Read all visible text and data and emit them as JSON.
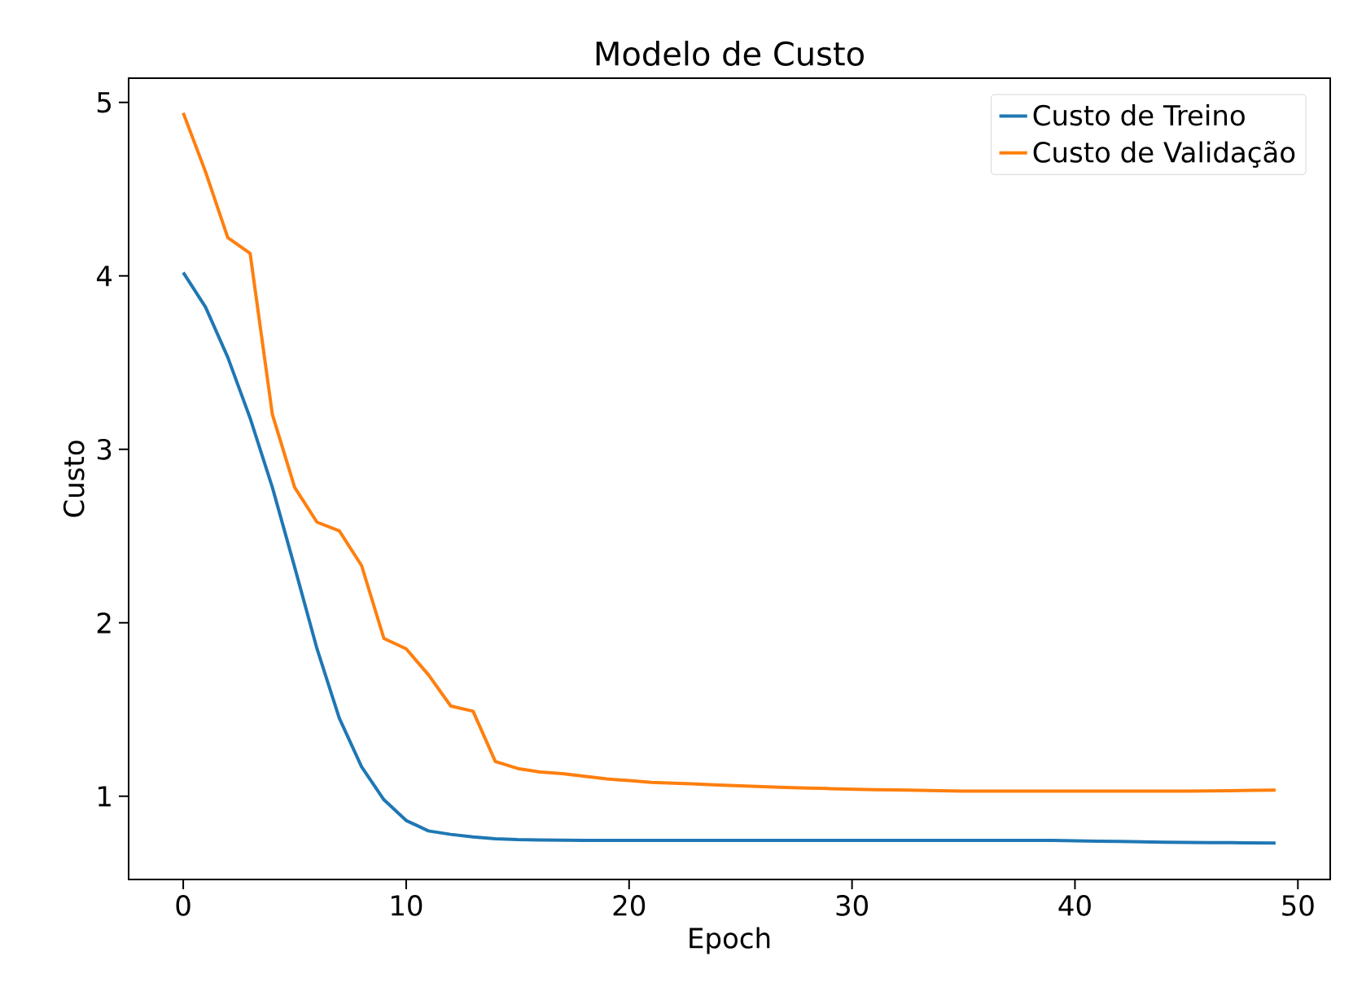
{
  "chart_data": {
    "type": "line",
    "title": "Modelo de Custo",
    "xlabel": "Epoch",
    "ylabel": "Custo",
    "x": [
      0,
      1,
      2,
      3,
      4,
      5,
      6,
      7,
      8,
      9,
      10,
      11,
      12,
      13,
      14,
      15,
      16,
      17,
      18,
      19,
      20,
      21,
      22,
      23,
      24,
      25,
      26,
      27,
      28,
      29,
      30,
      31,
      32,
      33,
      34,
      35,
      36,
      37,
      38,
      39,
      40,
      41,
      42,
      43,
      44,
      45,
      46,
      47,
      48,
      49
    ],
    "series": [
      {
        "name": "Custo de Treino",
        "color": "#1f77b4",
        "values": [
          4.02,
          3.82,
          3.53,
          3.18,
          2.78,
          2.32,
          1.85,
          1.45,
          1.17,
          0.98,
          0.86,
          0.8,
          0.78,
          0.765,
          0.755,
          0.75,
          0.748,
          0.746,
          0.745,
          0.745,
          0.745,
          0.745,
          0.745,
          0.745,
          0.745,
          0.745,
          0.745,
          0.745,
          0.745,
          0.745,
          0.745,
          0.745,
          0.745,
          0.745,
          0.745,
          0.745,
          0.745,
          0.745,
          0.745,
          0.745,
          0.743,
          0.741,
          0.739,
          0.737,
          0.735,
          0.734,
          0.733,
          0.732,
          0.731,
          0.73
        ]
      },
      {
        "name": "Custo de Validação",
        "color": "#ff7f0e",
        "values": [
          4.94,
          4.6,
          4.22,
          4.13,
          3.2,
          2.78,
          2.58,
          2.53,
          2.33,
          1.91,
          1.85,
          1.7,
          1.52,
          1.49,
          1.2,
          1.16,
          1.14,
          1.13,
          1.115,
          1.1,
          1.09,
          1.08,
          1.075,
          1.07,
          1.065,
          1.06,
          1.055,
          1.05,
          1.047,
          1.044,
          1.041,
          1.038,
          1.036,
          1.034,
          1.032,
          1.03,
          1.03,
          1.03,
          1.03,
          1.03,
          1.03,
          1.03,
          1.03,
          1.03,
          1.03,
          1.03,
          1.031,
          1.032,
          1.034,
          1.035
        ]
      }
    ],
    "xlim": [
      -2.45,
      51.45
    ],
    "ylim": [
      0.52,
      5.14
    ],
    "xticks": [
      0,
      10,
      20,
      30,
      40,
      50
    ],
    "yticks": [
      1,
      2,
      3,
      4,
      5
    ],
    "legend": "top right",
    "grid": false,
    "marker": "none",
    "line_style": "solid"
  }
}
